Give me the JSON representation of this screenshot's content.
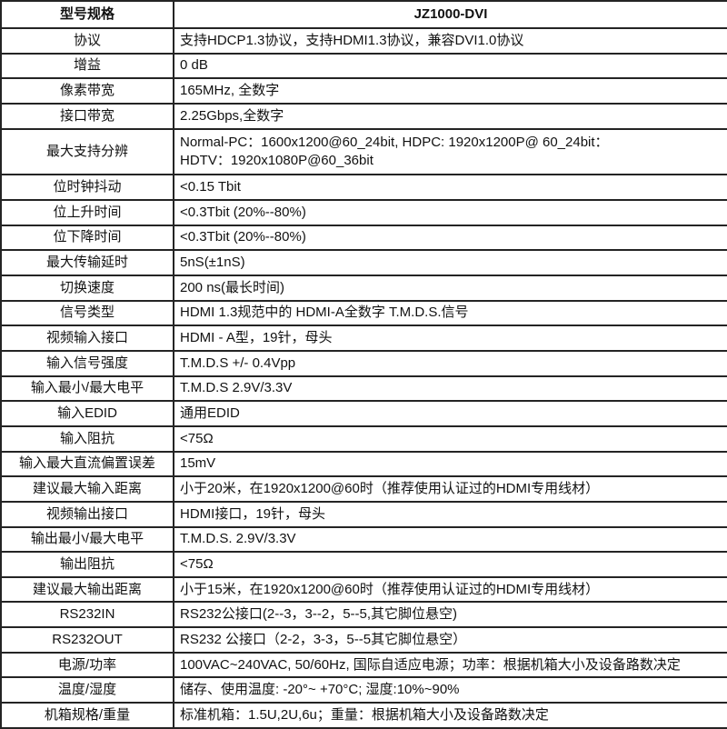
{
  "colors": {
    "border": "#242424",
    "text": "#111111",
    "background": "#ffffff"
  },
  "table": {
    "header": {
      "spec_label": "型号规格",
      "model": "JZ1000-DVI"
    },
    "rows": [
      {
        "label": "协议",
        "value": "支持HDCP1.3协议，支持HDMI1.3协议，兼容DVI1.0协议"
      },
      {
        "label": "增益",
        "value": "0 dB"
      },
      {
        "label": "像素带宽",
        "value": "165MHz, 全数字"
      },
      {
        "label": "接口带宽",
        "value": "2.25Gbps,全数字"
      },
      {
        "label": "最大支持分辨",
        "value": "Normal-PC：1600x1200@60_24bit, HDPC: 1920x1200P@ 60_24bit：\nHDTV：1920x1080P@60_36bit"
      },
      {
        "label": "位时钟抖动",
        "value": "<0.15 Tbit"
      },
      {
        "label": "位上升时间",
        "value": "<0.3Tbit (20%--80%)"
      },
      {
        "label": "位下降时间",
        "value": "<0.3Tbit (20%--80%)"
      },
      {
        "label": "最大传输延时",
        "value": "5nS(±1nS)"
      },
      {
        "label": "切换速度",
        "value": "200 ns(最长时间)"
      },
      {
        "label": "信号类型",
        "value": "HDMI 1.3规范中的 HDMI-A全数字 T.M.D.S.信号"
      },
      {
        "label": "视频输入接口",
        "value": "HDMI - A型，19针，母头"
      },
      {
        "label": "输入信号强度",
        "value": "T.M.D.S +/- 0.4Vpp"
      },
      {
        "label": "输入最小/最大电平",
        "value": "T.M.D.S 2.9V/3.3V"
      },
      {
        "label": "输入EDID",
        "value": "通用EDID"
      },
      {
        "label": "输入阻抗",
        "value": "<75Ω"
      },
      {
        "label": "输入最大直流偏置误差",
        "value": "15mV"
      },
      {
        "label": "建议最大输入距离",
        "value": "小于20米，在1920x1200@60时（推荐使用认证过的HDMI专用线材）"
      },
      {
        "label": "视频输出接口",
        "value": "HDMI接口，19针，母头"
      },
      {
        "label": "输出最小/最大电平",
        "value": "T.M.D.S. 2.9V/3.3V"
      },
      {
        "label": "输出阻抗",
        "value": "<75Ω"
      },
      {
        "label": "建议最大输出距离",
        "value": "小于15米，在1920x1200@60时（推荐使用认证过的HDMI专用线材）"
      },
      {
        "label": "RS232IN",
        "value": "RS232公接口(2--3，3--2，5--5,其它脚位悬空)"
      },
      {
        "label": "RS232OUT",
        "value": "RS232 公接口（2-2，3-3，5--5其它脚位悬空）"
      },
      {
        "label": "电源/功率",
        "value": "100VAC~240VAC, 50/60Hz, 国际自适应电源；功率：根据机箱大小及设备路数决定"
      },
      {
        "label": "温度/湿度",
        "value": "储存、使用温度: -20°~ +70°C; 湿度:10%~90%"
      },
      {
        "label": "机箱规格/重量",
        "value": "标准机箱：1.5U,2U,6u；重量：根据机箱大小及设备路数决定"
      }
    ]
  }
}
